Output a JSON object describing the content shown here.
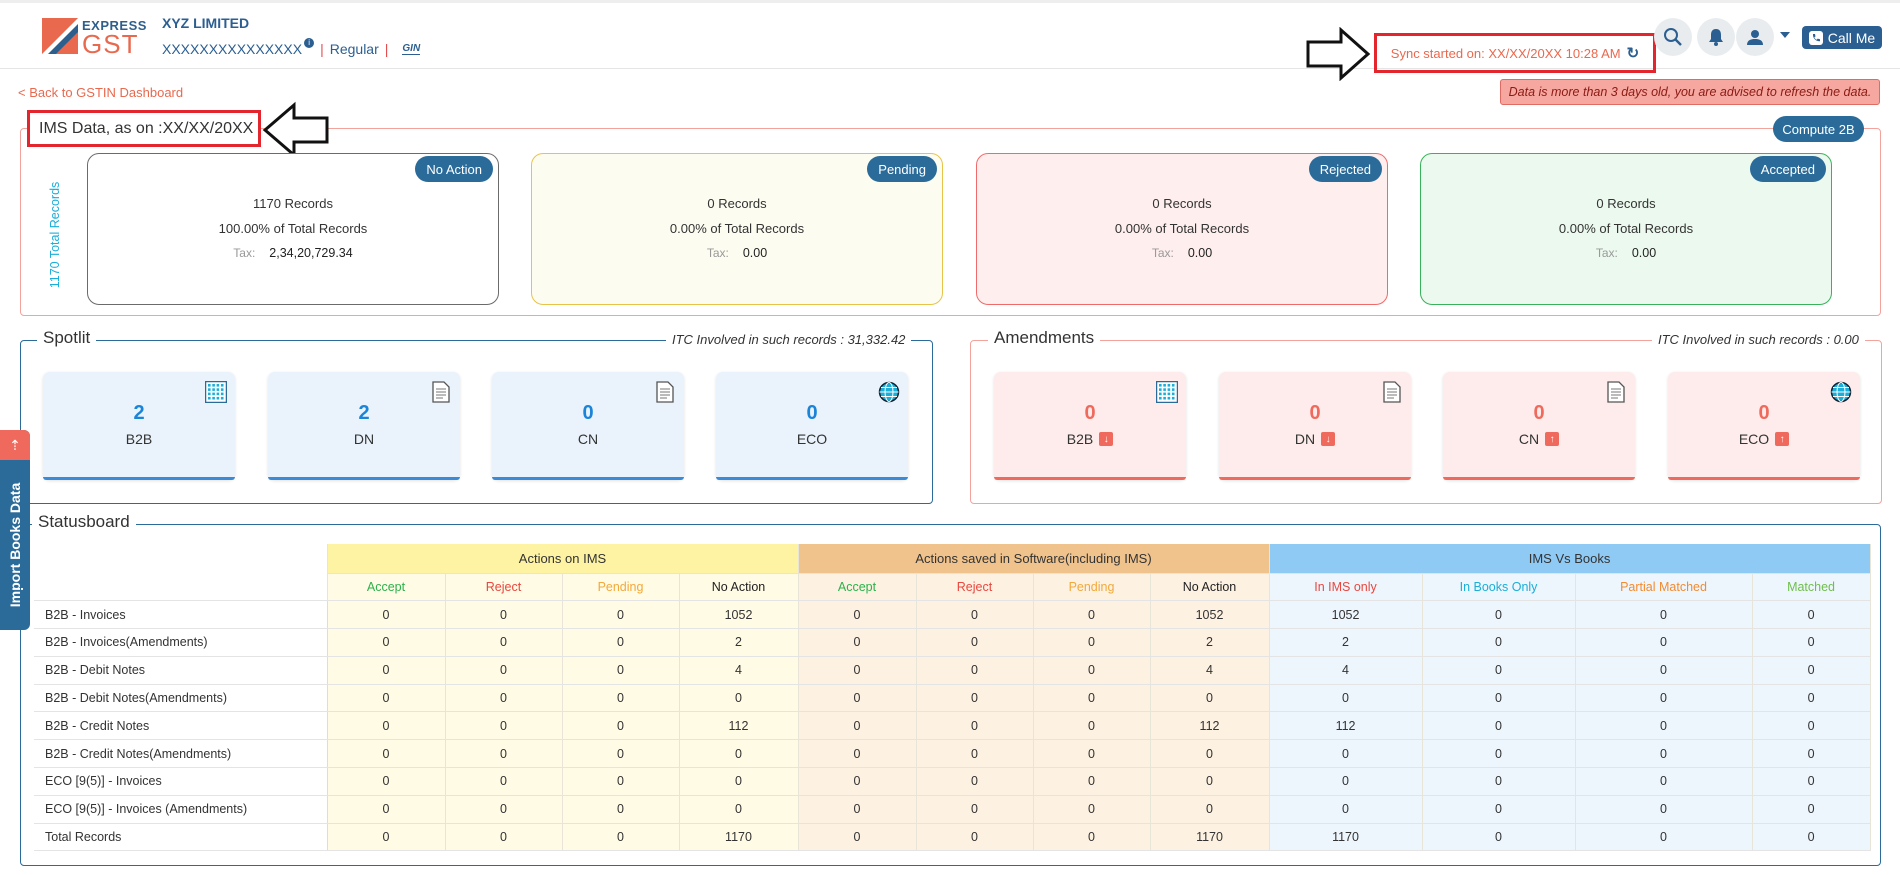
{
  "header": {
    "logo_express": "EXPRESS",
    "logo_gst": "GST",
    "company_name": "XYZ LIMITED",
    "gstin": "XXXXXXXXXXXXXXX",
    "info_badge": "i",
    "taxpayer_type": "Regular",
    "sync_text": "Sync started on: XX/XX/20XX 10:28 AM",
    "call_label": "Call Me"
  },
  "nav": {
    "back_link": "< Back to GSTIN Dashboard",
    "alert": "Data is more than 3 days old, you are advised to refresh the data."
  },
  "ims": {
    "title": "IMS Data, as on :XX/XX/20XX",
    "compute_label": "Compute 2B",
    "total_records": "1170 Total Records",
    "cards": [
      {
        "status": "No Action",
        "records": "1170 Records",
        "percent": "100.00% of Total Records",
        "tax_label": "Tax:",
        "tax": "2,34,20,729.34",
        "border": "#6b6b6b",
        "bg": "#ffffff"
      },
      {
        "status": "Pending",
        "records": "0 Records",
        "percent": "0.00% of Total Records",
        "tax_label": "Tax:",
        "tax": "0.00",
        "border": "#e8c34a",
        "bg": "#fdfcf1"
      },
      {
        "status": "Rejected",
        "records": "0 Records",
        "percent": "0.00% of Total Records",
        "tax_label": "Tax:",
        "tax": "0.00",
        "border": "#ef6b6b",
        "bg": "#feeeee"
      },
      {
        "status": "Accepted",
        "records": "0 Records",
        "percent": "0.00% of Total Records",
        "tax_label": "Tax:",
        "tax": "0.00",
        "border": "#38b25b",
        "bg": "#ecf9ef"
      }
    ]
  },
  "spotlit": {
    "title": "Spotlit",
    "itc": "ITC Involved in such records : 31,332.42",
    "cards": [
      {
        "count": "2",
        "label": "B2B",
        "icon": "grid-icon"
      },
      {
        "count": "2",
        "label": "DN",
        "icon": "document-icon"
      },
      {
        "count": "0",
        "label": "CN",
        "icon": "document-icon"
      },
      {
        "count": "0",
        "label": "ECO",
        "icon": "globe-icon"
      }
    ]
  },
  "amendments": {
    "title": "Amendments",
    "itc": "ITC Involved in such records : 0.00",
    "cards": [
      {
        "count": "0",
        "label": "B2B",
        "icon": "grid-icon",
        "arrow": "down"
      },
      {
        "count": "0",
        "label": "DN",
        "icon": "document-icon",
        "arrow": "down"
      },
      {
        "count": "0",
        "label": "CN",
        "icon": "document-icon",
        "arrow": "up"
      },
      {
        "count": "0",
        "label": "ECO",
        "icon": "globe-icon",
        "arrow": "up"
      }
    ]
  },
  "side_tab": {
    "label": "Import Books Data"
  },
  "statusboard": {
    "title": "Statusboard",
    "groups": [
      "Actions on IMS",
      "Actions saved in Software(including IMS)",
      "IMS Vs Books"
    ],
    "columns": [
      "Accept",
      "Reject",
      "Pending",
      "No Action",
      "Accept",
      "Reject",
      "Pending",
      "No Action",
      "In IMS only",
      "In Books Only",
      "Partial Matched",
      "Matched"
    ],
    "rows": [
      {
        "label": "B2B - Invoices",
        "values": [
          "0",
          "0",
          "0",
          "1052",
          "0",
          "0",
          "0",
          "1052",
          "1052",
          "0",
          "0",
          "0"
        ]
      },
      {
        "label": "B2B - Invoices(Amendments)",
        "values": [
          "0",
          "0",
          "0",
          "2",
          "0",
          "0",
          "0",
          "2",
          "2",
          "0",
          "0",
          "0"
        ]
      },
      {
        "label": "B2B - Debit Notes",
        "values": [
          "0",
          "0",
          "0",
          "4",
          "0",
          "0",
          "0",
          "4",
          "4",
          "0",
          "0",
          "0"
        ]
      },
      {
        "label": "B2B - Debit Notes(Amendments)",
        "values": [
          "0",
          "0",
          "0",
          "0",
          "0",
          "0",
          "0",
          "0",
          "0",
          "0",
          "0",
          "0"
        ]
      },
      {
        "label": "B2B - Credit Notes",
        "values": [
          "0",
          "0",
          "0",
          "112",
          "0",
          "0",
          "0",
          "112",
          "112",
          "0",
          "0",
          "0"
        ]
      },
      {
        "label": "B2B - Credit Notes(Amendments)",
        "values": [
          "0",
          "0",
          "0",
          "0",
          "0",
          "0",
          "0",
          "0",
          "0",
          "0",
          "0",
          "0"
        ]
      },
      {
        "label": "ECO [9(5)] - Invoices",
        "values": [
          "0",
          "0",
          "0",
          "0",
          "0",
          "0",
          "0",
          "0",
          "0",
          "0",
          "0",
          "0"
        ]
      },
      {
        "label": "ECO [9(5)] - Invoices (Amendments)",
        "values": [
          "0",
          "0",
          "0",
          "0",
          "0",
          "0",
          "0",
          "0",
          "0",
          "0",
          "0",
          "0"
        ]
      },
      {
        "label": "Total Records",
        "values": [
          "0",
          "0",
          "0",
          "1170",
          "0",
          "0",
          "0",
          "1170",
          "1170",
          "0",
          "0",
          "0"
        ]
      }
    ]
  },
  "colors": {
    "brand_blue": "#2b6b99",
    "brand_orange": "#e9694f",
    "highlight_red": "#e3262d",
    "spotlit_count": "#1a84d8",
    "amend_count": "#ef6a5c"
  }
}
